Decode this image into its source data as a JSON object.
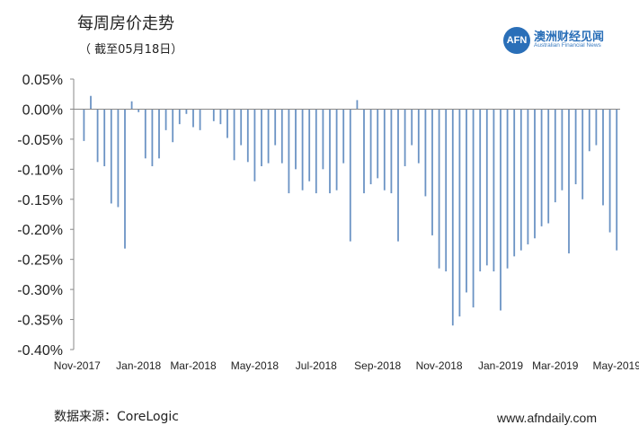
{
  "header": {
    "title": "每周房价走势",
    "subtitle": "（ 截至05月18日）"
  },
  "logo": {
    "badge": "AFN",
    "name_cn": "澳洲财经见闻",
    "name_en": "Australian Financial News"
  },
  "footer": {
    "source": "数据来源：CoreLogic",
    "website": "www.afndaily.com"
  },
  "colors": {
    "bar": "#6b93c4",
    "axis": "#888888",
    "brand": "#2a6fb8"
  },
  "chart_data": {
    "type": "bar",
    "title": "每周房价走势",
    "xlabel": "",
    "ylabel": "",
    "ylim": [
      -0.004,
      0.0005
    ],
    "y_format": "percent",
    "yticks": [
      0.0005,
      0.0,
      -0.0005,
      -0.001,
      -0.0015,
      -0.002,
      -0.0025,
      -0.003,
      -0.0035,
      -0.004
    ],
    "ytick_labels": [
      "0.05%",
      "0.00%",
      "-0.05%",
      "-0.10%",
      "-0.15%",
      "-0.20%",
      "-0.25%",
      "-0.30%",
      "-0.35%",
      "-0.40%"
    ],
    "xtick_labels": [
      "Nov-2017",
      "Jan-2018",
      "Mar-2018",
      "May-2018",
      "Jul-2018",
      "Sep-2018",
      "Nov-2018",
      "Jan-2019",
      "Mar-2019",
      "May-2019"
    ],
    "xtick_positions": [
      0,
      9,
      17,
      26,
      35,
      44,
      53,
      62,
      70,
      79
    ],
    "grid": false,
    "legend": "none",
    "series": [
      {
        "values": [
          0.0,
          -0.00053,
          0.00022,
          -0.00088,
          -0.00095,
          -0.00157,
          -0.00163,
          -0.00232,
          0.00013,
          -5e-05,
          -0.00082,
          -0.00095,
          -0.00082,
          -0.00035,
          -0.00055,
          -0.00025,
          -8e-05,
          -0.0003,
          -0.00035,
          0.0,
          -0.0002,
          -0.00025,
          -0.00048,
          -0.00085,
          -0.0006,
          -0.00088,
          -0.0012,
          -0.00095,
          -0.0009,
          -0.0006,
          -0.0009,
          -0.0014,
          -0.001,
          -0.00135,
          -0.0012,
          -0.0014,
          -0.001,
          -0.0014,
          -0.00135,
          -0.0009,
          -0.0022,
          0.00015,
          -0.0014,
          -0.00125,
          -0.00115,
          -0.00135,
          -0.0014,
          -0.0022,
          -0.00095,
          -0.0006,
          -0.0009,
          -0.00145,
          -0.0021,
          -0.00265,
          -0.0027,
          -0.0036,
          -0.00345,
          -0.00305,
          -0.0033,
          -0.0027,
          -0.0026,
          -0.0027,
          -0.00335,
          -0.00265,
          -0.00245,
          -0.00235,
          -0.00225,
          -0.00215,
          -0.00195,
          -0.0019,
          -0.00155,
          -0.00135,
          -0.0024,
          -0.00125,
          -0.0015,
          -0.0007,
          -0.0006,
          -0.0016,
          -0.00205,
          -0.00235
        ]
      }
    ]
  }
}
